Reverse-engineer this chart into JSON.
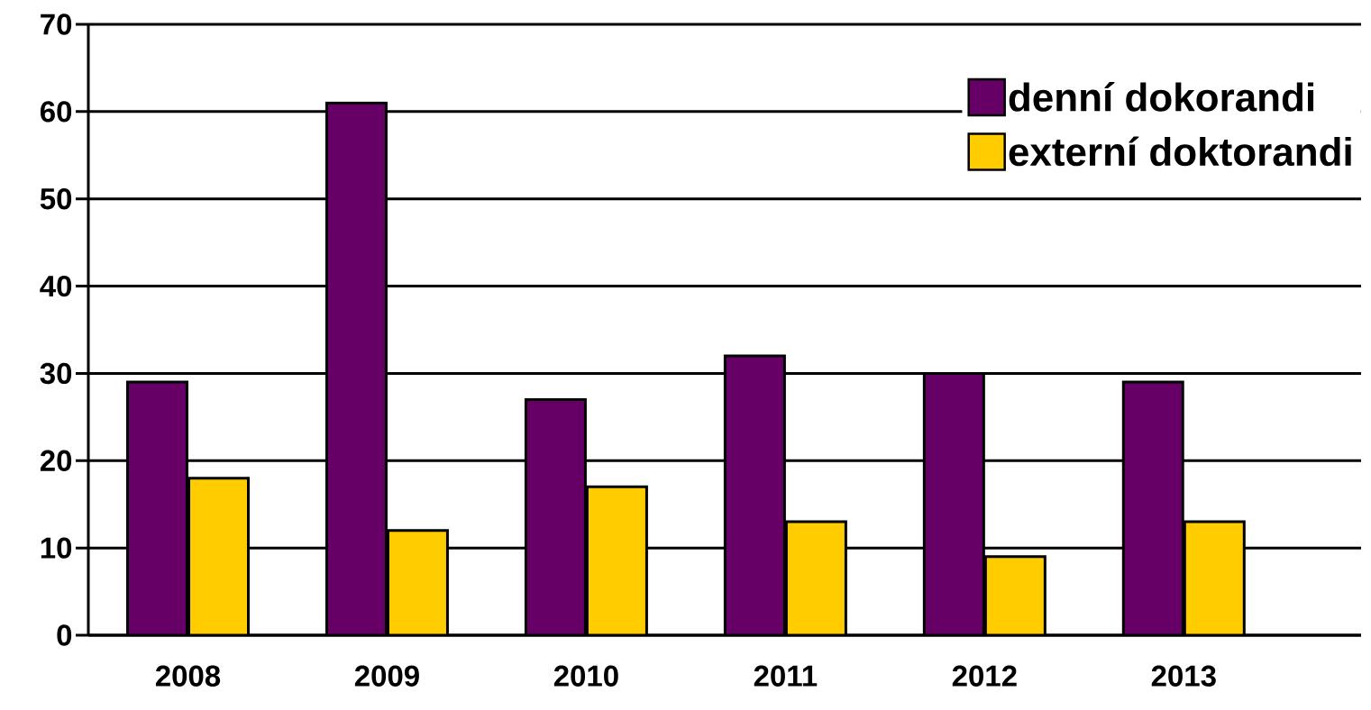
{
  "chart_data": {
    "type": "bar",
    "categories": [
      "2008",
      "2009",
      "2010",
      "2011",
      "2012",
      "2013"
    ],
    "series": [
      {
        "name": "denní dokorandi",
        "color": "#660066",
        "values": [
          29,
          61,
          27,
          32,
          30,
          29
        ]
      },
      {
        "name": "externí doktorandi",
        "color": "#ffcc00",
        "values": [
          18,
          12,
          17,
          13,
          9,
          13
        ]
      }
    ],
    "ylim": [
      0,
      70
    ],
    "yticks": [
      0,
      10,
      20,
      30,
      40,
      50,
      60,
      70
    ],
    "grid": "y",
    "legend": "top right"
  }
}
